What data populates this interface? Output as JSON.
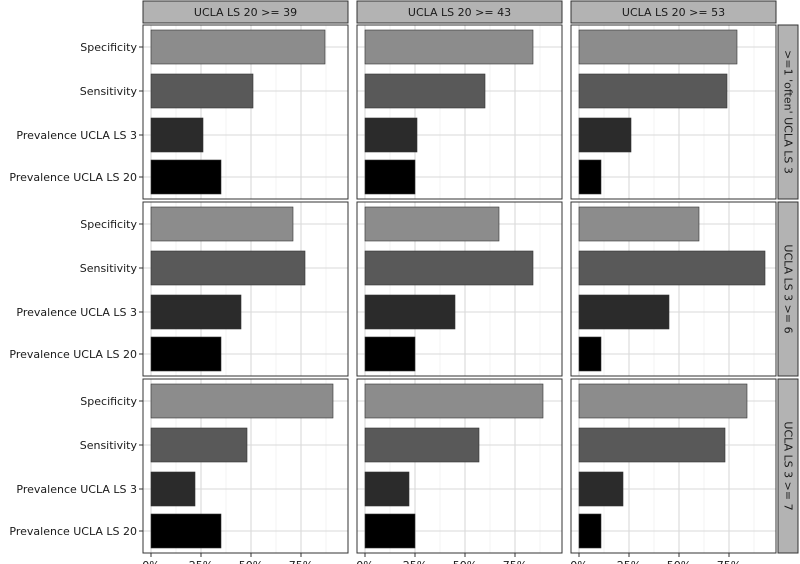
{
  "chart_data": {
    "type": "bar",
    "orientation": "horizontal",
    "title": "",
    "xlabel": "",
    "ylabel": "",
    "xlim": [
      0,
      0.98
    ],
    "x_ticks": [
      0,
      0.25,
      0.5,
      0.75
    ],
    "x_tick_labels": [
      "0%",
      "25%",
      "50%",
      "75%"
    ],
    "grid": true,
    "legend": "none",
    "categories": [
      "Specificity",
      "Sensitivity",
      "Prevalence UCLA  LS  3",
      "Prevalence UCLA  LS  20"
    ],
    "category_colors": [
      "#8c8c8c",
      "#595959",
      "#2b2b2b",
      "#000000"
    ],
    "col_facets": [
      "UCLA  LS  20 >= 39",
      "UCLA  LS  20 >= 43",
      "UCLA  LS  20 >= 53"
    ],
    "row_facets": [
      ">=1 'often' UCLA  LS  3",
      "UCLA  LS  3 >= 6",
      "UCLA  LS  3 >= 7"
    ],
    "values": [
      [
        [
          0.87,
          0.51,
          0.26,
          0.35
        ],
        [
          0.84,
          0.6,
          0.26,
          0.25
        ],
        [
          0.79,
          0.74,
          0.26,
          0.11
        ]
      ],
      [
        [
          0.71,
          0.77,
          0.45,
          0.35
        ],
        [
          0.67,
          0.84,
          0.45,
          0.25
        ],
        [
          0.6,
          0.93,
          0.45,
          0.11
        ]
      ],
      [
        [
          0.91,
          0.48,
          0.22,
          0.35
        ],
        [
          0.89,
          0.57,
          0.22,
          0.25
        ],
        [
          0.84,
          0.73,
          0.22,
          0.11
        ]
      ]
    ]
  }
}
